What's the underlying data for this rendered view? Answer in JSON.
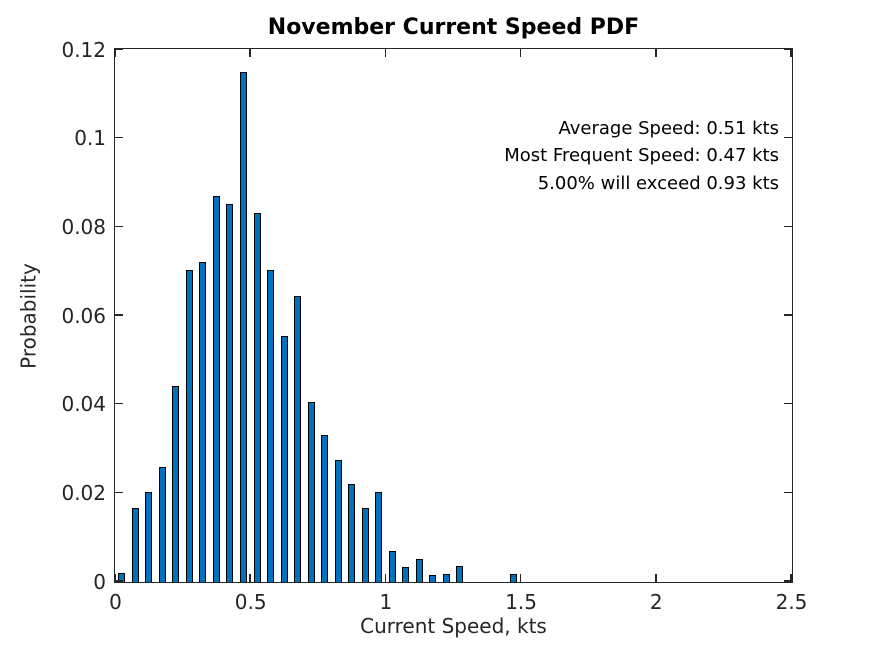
{
  "chart_data": {
    "type": "bar",
    "title": "November Current Speed PDF",
    "xlabel": "Current Speed, kts",
    "ylabel": "Probability",
    "x_range": [
      0,
      2.5
    ],
    "y_range": [
      0,
      0.12
    ],
    "bin_width": 0.05,
    "bar_width_fraction": 0.52,
    "bar_color": "#0072BD",
    "bar_edge_color": "#000000",
    "axis_color": "#262626",
    "grid": "off",
    "x_ticks": [
      0,
      0.5,
      1,
      1.5,
      2,
      2.5
    ],
    "x_tick_labels": [
      "0",
      "0.5",
      "1",
      "1.5",
      "2",
      "2.5"
    ],
    "y_ticks": [
      0,
      0.02,
      0.04,
      0.06,
      0.08,
      0.1,
      0.12
    ],
    "y_tick_labels": [
      "0",
      "0.02",
      "0.04",
      "0.06",
      "0.08",
      "0.1",
      "0.12"
    ],
    "bins": [
      0.025,
      0.075,
      0.125,
      0.175,
      0.225,
      0.275,
      0.325,
      0.375,
      0.425,
      0.475,
      0.525,
      0.575,
      0.625,
      0.675,
      0.725,
      0.775,
      0.825,
      0.875,
      0.925,
      0.975,
      1.025,
      1.075,
      1.125,
      1.175,
      1.225,
      1.275,
      1.325,
      1.375,
      1.425,
      1.475
    ],
    "values": [
      0.002,
      0.0166,
      0.0202,
      0.0259,
      0.0443,
      0.0703,
      0.0721,
      0.087,
      0.0853,
      0.115,
      0.0833,
      0.0703,
      0.0554,
      0.0646,
      0.0405,
      0.0331,
      0.0275,
      0.022,
      0.0166,
      0.0202,
      0.0071,
      0.0034,
      0.0051,
      0.0016,
      0.0017,
      0.0035,
      0,
      0,
      0,
      0.0017
    ],
    "annotations": [
      "Average Speed: 0.51 kts",
      "Most Frequent Speed: 0.47 kts",
      "5.00% will exceed 0.93 kts"
    ]
  }
}
